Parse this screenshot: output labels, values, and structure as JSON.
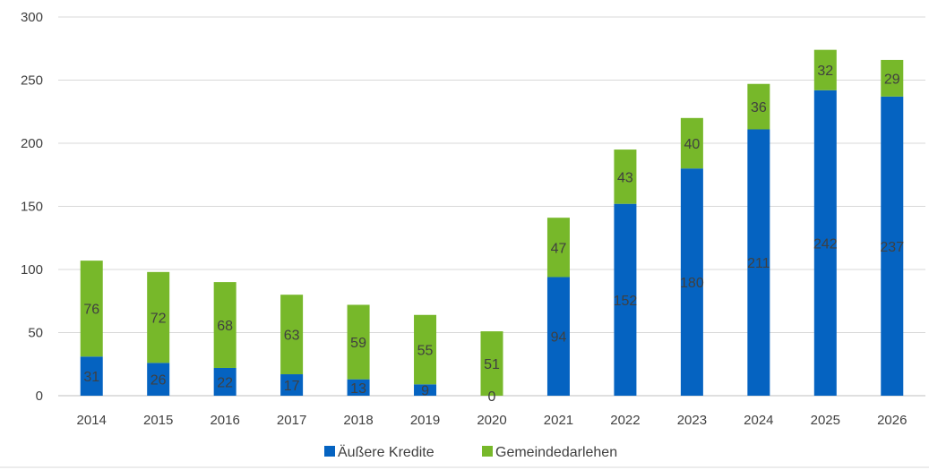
{
  "chart_data": {
    "type": "bar",
    "stacked": true,
    "categories": [
      "2014",
      "2015",
      "2016",
      "2017",
      "2018",
      "2019",
      "2020",
      "2021",
      "2022",
      "2023",
      "2024",
      "2025",
      "2026"
    ],
    "series": [
      {
        "name": "Äußere Kredite",
        "color": "#0563C1",
        "values": [
          31,
          26,
          22,
          17,
          13,
          9,
          0,
          94,
          152,
          180,
          211,
          242,
          237
        ]
      },
      {
        "name": "Gemeindedarlehen",
        "color": "#77B82A",
        "values": [
          76,
          72,
          68,
          63,
          59,
          55,
          51,
          47,
          43,
          40,
          36,
          32,
          29
        ]
      }
    ],
    "ylim": [
      0,
      300
    ],
    "yticks": [
      0,
      50,
      100,
      150,
      200,
      250,
      300
    ],
    "grid": "horizontal",
    "legend": "bottom-center"
  }
}
